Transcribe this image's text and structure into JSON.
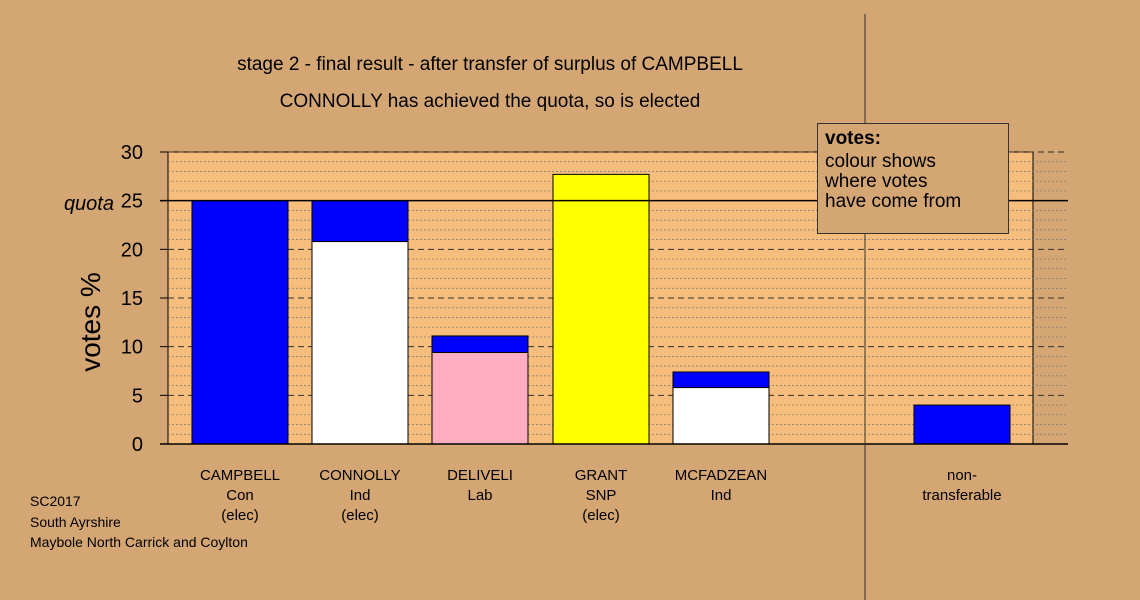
{
  "title": "stage 2 - final result - after transfer of surplus of CAMPBELL",
  "subtitle": "CONNOLLY has achieved the quota, so is elected",
  "legend": {
    "heading": "votes:",
    "text": "colour shows\nwhere votes\nhave come from"
  },
  "footer": {
    "line1": "SC2017",
    "line2": "South Ayrshire",
    "line3": "Maybole North Carrick and Coylton"
  },
  "colors": {
    "background": "#d4a673",
    "plot_area": "#f7bd7c",
    "blue": "#0000ff",
    "white": "#ffffff",
    "pink": "#ffadc2",
    "yellow": "#ffff00"
  },
  "chart_data": {
    "type": "bar",
    "stacked": true,
    "ylabel": "votes %",
    "ylim": [
      0,
      30
    ],
    "yticks": [
      "0",
      "5",
      "10",
      "15",
      "20",
      "25",
      "30"
    ],
    "quota": 25,
    "quota_label": "quota",
    "candidates": [
      {
        "name": "CAMPBELL",
        "party": "Con",
        "status": "(elec)",
        "segments": [
          {
            "value": 25.0,
            "color": "#0000ff"
          }
        ]
      },
      {
        "name": "CONNOLLY",
        "party": "Ind",
        "status": "(elec)",
        "segments": [
          {
            "value": 20.8,
            "color": "#ffffff"
          },
          {
            "value": 4.2,
            "color": "#0000ff"
          }
        ]
      },
      {
        "name": "DELIVELI",
        "party": "Lab",
        "status": "",
        "segments": [
          {
            "value": 9.4,
            "color": "#ffadc2"
          },
          {
            "value": 1.7,
            "color": "#0000ff"
          }
        ]
      },
      {
        "name": "GRANT",
        "party": "SNP",
        "status": "(elec)",
        "segments": [
          {
            "value": 27.7,
            "color": "#ffff00"
          }
        ]
      },
      {
        "name": "MCFADZEAN",
        "party": "Ind",
        "status": "",
        "segments": [
          {
            "value": 5.8,
            "color": "#ffffff"
          },
          {
            "value": 1.6,
            "color": "#0000ff"
          }
        ]
      }
    ],
    "non_transferable": {
      "label1": "non-",
      "label2": "transferable",
      "value": 4.0,
      "color": "#0000ff"
    }
  }
}
